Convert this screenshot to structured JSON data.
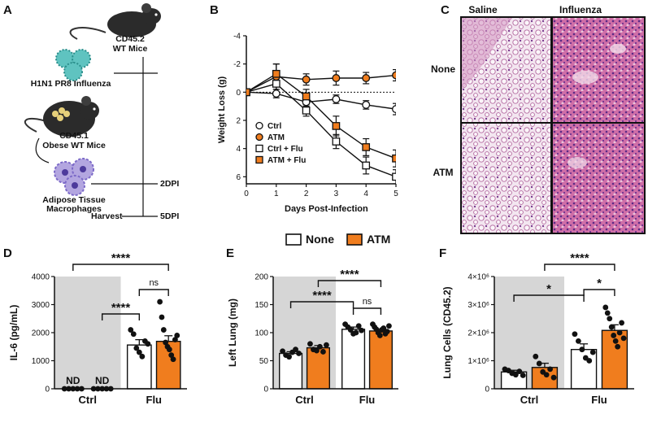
{
  "panels": {
    "A": "A",
    "B": "B",
    "C": "C",
    "D": "D",
    "E": "E",
    "F": "F"
  },
  "schematic": {
    "donor_label": "CD45.2",
    "donor_label2": "WT Mice",
    "virus_label": "H1N1 PR8 Influenza",
    "obese_label": "CD45.1",
    "obese_label2": "Obese WT Mice",
    "atm_label": "Adipose Tissue",
    "atm_label2": "Macrophages",
    "dpi2": "2DPI",
    "harvest": "Harvest",
    "dpi5": "5DPI"
  },
  "histology": {
    "col_saline": "Saline",
    "col_influenza": "Influenza",
    "row_none": "None",
    "row_atm": "ATM"
  },
  "shared_legend": {
    "none": "None",
    "atm": "ATM"
  },
  "colors": {
    "orange": "#f07d1e",
    "gray": "#d6d6d6",
    "histo_light": "#ecdcea",
    "histo_dense": "#c65a9c"
  },
  "chart_data": [
    {
      "id": "B",
      "type": "line",
      "title": "",
      "xlabel": "Days Post-Infection",
      "ylabel": "Weight Loss (g)",
      "x": [
        0,
        1,
        2,
        3,
        4,
        5
      ],
      "xticks": [
        "0",
        "1",
        "2",
        "3",
        "4",
        "5"
      ],
      "ylim": [
        -4,
        6.5
      ],
      "yticks": [
        "-4",
        "-2",
        "0",
        "2",
        "4",
        "6"
      ],
      "series": [
        {
          "name": "Ctrl",
          "marker": "open-circle",
          "values": [
            0,
            0.1,
            0.7,
            0.5,
            0.9,
            1.2
          ],
          "err": [
            0,
            0.3,
            0.3,
            0.3,
            0.3,
            0.4
          ]
        },
        {
          "name": "ATM",
          "marker": "filled-circle-orange",
          "values": [
            0,
            -1.1,
            -0.9,
            -1.0,
            -1.0,
            -1.2
          ],
          "err": [
            0,
            0.9,
            0.4,
            0.5,
            0.4,
            0.4
          ]
        },
        {
          "name": "Ctrl + Flu",
          "marker": "open-square",
          "values": [
            0,
            -0.6,
            1.3,
            3.5,
            5.2,
            6.0
          ],
          "err": [
            0,
            0.6,
            0.4,
            0.5,
            0.6,
            0.5
          ]
        },
        {
          "name": "ATM + Flu",
          "marker": "filled-square-orange",
          "values": [
            0,
            -1.3,
            0.3,
            2.4,
            3.9,
            4.7
          ],
          "err": [
            0,
            0.7,
            0.5,
            0.7,
            0.6,
            0.6
          ]
        }
      ]
    },
    {
      "id": "D",
      "type": "bar",
      "ylabel": "IL-6 (pg/mL)",
      "categories": [
        "Ctrl",
        "Flu"
      ],
      "ylim": [
        0,
        4000
      ],
      "yticks": [
        "0",
        "1000",
        "2000",
        "3000",
        "4000"
      ],
      "bars": [
        {
          "group": "Ctrl",
          "series": "None",
          "value": 0,
          "err": 0,
          "points": [
            0,
            0,
            0,
            0,
            0
          ],
          "label": "ND"
        },
        {
          "group": "Ctrl",
          "series": "ATM",
          "value": 0,
          "err": 0,
          "points": [
            0,
            0,
            0,
            0,
            0
          ],
          "label": "ND"
        },
        {
          "group": "Flu",
          "series": "None",
          "value": 1560,
          "err": 190,
          "points": [
            2100,
            1950,
            1450,
            1300,
            1150,
            1700,
            1600
          ]
        },
        {
          "group": "Flu",
          "series": "ATM",
          "value": 1690,
          "err": 200,
          "points": [
            3100,
            2550,
            2100,
            1650,
            1500,
            1400,
            1200,
            1050,
            1750,
            1900
          ]
        }
      ],
      "significance": [
        {
          "label": "****",
          "from": 1,
          "to": 2
        },
        {
          "label": "****",
          "from": 0,
          "to": 3
        },
        {
          "label": "ns",
          "from": 2,
          "to": 3
        }
      ]
    },
    {
      "id": "E",
      "type": "bar",
      "ylabel": "Left Lung (mg)",
      "categories": [
        "Ctrl",
        "Flu"
      ],
      "ylim": [
        0,
        200
      ],
      "yticks": [
        "0",
        "50",
        "100",
        "150",
        "200"
      ],
      "bars": [
        {
          "group": "Ctrl",
          "series": "None",
          "value": 63,
          "err": 3,
          "points": [
            67,
            60,
            57,
            65,
            70,
            63
          ]
        },
        {
          "group": "Ctrl",
          "series": "ATM",
          "value": 73,
          "err": 4,
          "points": [
            80,
            70,
            68,
            75,
            66,
            78
          ]
        },
        {
          "group": "Flu",
          "series": "None",
          "value": 106,
          "err": 4,
          "points": [
            115,
            110,
            105,
            98,
            100,
            112,
            104
          ]
        },
        {
          "group": "Flu",
          "series": "ATM",
          "value": 103,
          "err": 3,
          "points": [
            115,
            110,
            106,
            100,
            95,
            105,
            108,
            98,
            102,
            112
          ]
        }
      ],
      "significance": [
        {
          "label": "****",
          "from": 0,
          "to": 2
        },
        {
          "label": "****",
          "from": 1,
          "to": 3
        },
        {
          "label": "ns",
          "from": 2,
          "to": 3
        }
      ]
    },
    {
      "id": "F",
      "type": "bar",
      "ylabel": "Lung Cells (CD45.2)",
      "categories": [
        "Ctrl",
        "Flu"
      ],
      "ylim": [
        0,
        4000000
      ],
      "yticks": [
        "0",
        "1×10⁶",
        "2×10⁶",
        "3×10⁶",
        "4×10⁶"
      ],
      "bars": [
        {
          "group": "Ctrl",
          "series": "None",
          "value": 600000,
          "err": 60000,
          "points": [
            700000,
            650000,
            550000,
            500000,
            620000,
            480000
          ]
        },
        {
          "group": "Ctrl",
          "series": "ATM",
          "value": 760000,
          "err": 150000,
          "points": [
            1150000,
            900000,
            600000,
            500000,
            700000,
            400000
          ]
        },
        {
          "group": "Flu",
          "series": "None",
          "value": 1400000,
          "err": 200000,
          "points": [
            1950000,
            1700000,
            1400000,
            1100000,
            1000000,
            1300000
          ]
        },
        {
          "group": "Flu",
          "series": "ATM",
          "value": 2080000,
          "err": 200000,
          "points": [
            2900000,
            2700000,
            2500000,
            2200000,
            1900000,
            1700000,
            1500000,
            2000000,
            2350000,
            1800000
          ]
        }
      ],
      "significance": [
        {
          "label": "*",
          "from": 0,
          "to": 2
        },
        {
          "label": "****",
          "from": 1,
          "to": 3
        },
        {
          "label": "*",
          "from": 2,
          "to": 3
        }
      ]
    }
  ]
}
